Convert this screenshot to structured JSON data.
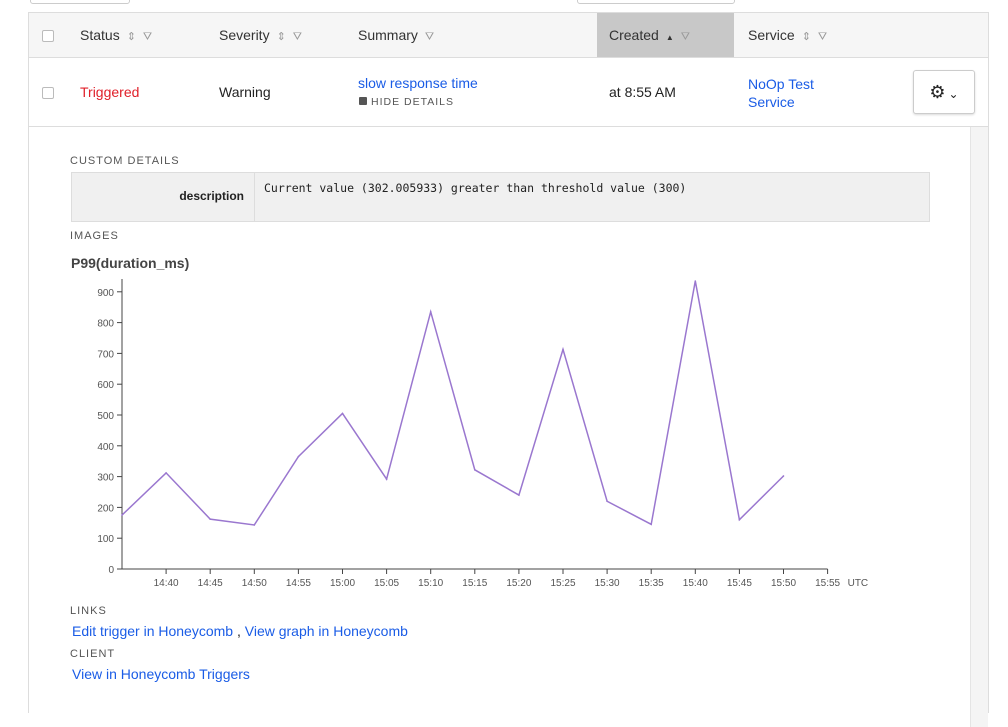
{
  "table": {
    "columns": [
      {
        "label": "Status",
        "sortable": true
      },
      {
        "label": "Severity",
        "sortable": true
      },
      {
        "label": "Summary",
        "sortable": false
      },
      {
        "label": "Created",
        "sortable": true,
        "sort": "ascending",
        "active": true
      },
      {
        "label": "Service",
        "sortable": true
      }
    ],
    "row": {
      "status": "Triggered",
      "severity": "Warning",
      "summary": "slow response time",
      "hide_details": "HIDE DETAILS",
      "created": "at 8:55 AM",
      "service_line1": "NoOp Test",
      "service_line2": "Service"
    }
  },
  "details": {
    "custom_details_label": "CUSTOM DETAILS",
    "key": "description",
    "value": "Current value (302.005933) greater than threshold value (300)",
    "images_label": "IMAGES",
    "links_label": "LINKS",
    "link1": "Edit trigger in Honeycomb",
    "link_sep": ",",
    "link2": "View graph in Honeycomb",
    "client_label": "CLIENT",
    "client_link": "View in Honeycomb Triggers"
  },
  "colors": {
    "status_triggered": "#e0202a",
    "link": "#1a5ce6",
    "line": "#9a77cf",
    "active_header": "#c8c8c8"
  },
  "chart_data": {
    "type": "line",
    "title": "P99(duration_ms)",
    "x": [
      "14:35",
      "14:40",
      "14:45",
      "14:50",
      "14:55",
      "15:00",
      "15:05",
      "15:10",
      "15:15",
      "15:20",
      "15:25",
      "15:30",
      "15:35",
      "15:40",
      "15:45",
      "15:50"
    ],
    "values": [
      175,
      312,
      162,
      143,
      365,
      505,
      292,
      835,
      322,
      240,
      713,
      220,
      145,
      935,
      160,
      302
    ],
    "xticks": [
      "14:40",
      "14:45",
      "14:50",
      "14:55",
      "15:00",
      "15:05",
      "15:10",
      "15:15",
      "15:20",
      "15:25",
      "15:30",
      "15:35",
      "15:40",
      "15:45",
      "15:50",
      "15:55"
    ],
    "xunit": "UTC",
    "yticks": [
      0,
      100,
      200,
      300,
      400,
      500,
      600,
      700,
      800,
      900
    ],
    "ylim": [
      0,
      935
    ],
    "grid": false
  }
}
